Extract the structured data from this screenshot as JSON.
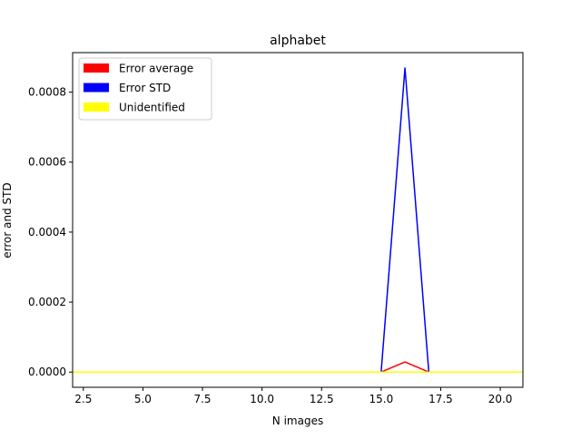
{
  "chart_data": {
    "type": "line",
    "title": "alphabet",
    "xlabel": "N images",
    "ylabel": "error and STD",
    "xlim": [
      2.05,
      20.95
    ],
    "ylim": [
      -4.35e-05,
      0.000913
    ],
    "xticks": [
      2.5,
      5.0,
      7.5,
      10.0,
      12.5,
      15.0,
      17.5,
      20.0
    ],
    "xtick_labels": [
      "2.5",
      "5.0",
      "7.5",
      "10.0",
      "12.5",
      "15.0",
      "17.5",
      "20.0"
    ],
    "yticks": [
      0.0,
      0.0002,
      0.0004,
      0.0006,
      0.0008
    ],
    "ytick_labels": [
      "0.0000",
      "0.0002",
      "0.0004",
      "0.0006",
      "0.0008"
    ],
    "grid": false,
    "legend_position": "upper-left",
    "x": [
      2,
      3,
      4,
      5,
      6,
      7,
      8,
      9,
      10,
      11,
      12,
      13,
      14,
      15,
      16,
      17,
      18,
      19,
      20,
      21
    ],
    "series": [
      {
        "name": "Error average",
        "color": "#ff0000",
        "values": [
          0,
          0,
          0,
          0,
          0,
          0,
          0,
          0,
          0,
          0,
          0,
          0,
          0,
          0,
          2.9e-05,
          0,
          0,
          0,
          0,
          0
        ]
      },
      {
        "name": "Error STD",
        "color": "#0000ff",
        "values": [
          0,
          0,
          0,
          0,
          0,
          0,
          0,
          0,
          0,
          0,
          0,
          0,
          0,
          0,
          0.000869,
          0,
          0,
          0,
          0,
          0
        ]
      },
      {
        "name": "Unidentified",
        "color": "#ffff00",
        "values": [
          0,
          0,
          0,
          0,
          0,
          0,
          0,
          0,
          0,
          0,
          0,
          0,
          0,
          0,
          0,
          0,
          0,
          0,
          0,
          0
        ]
      }
    ]
  }
}
